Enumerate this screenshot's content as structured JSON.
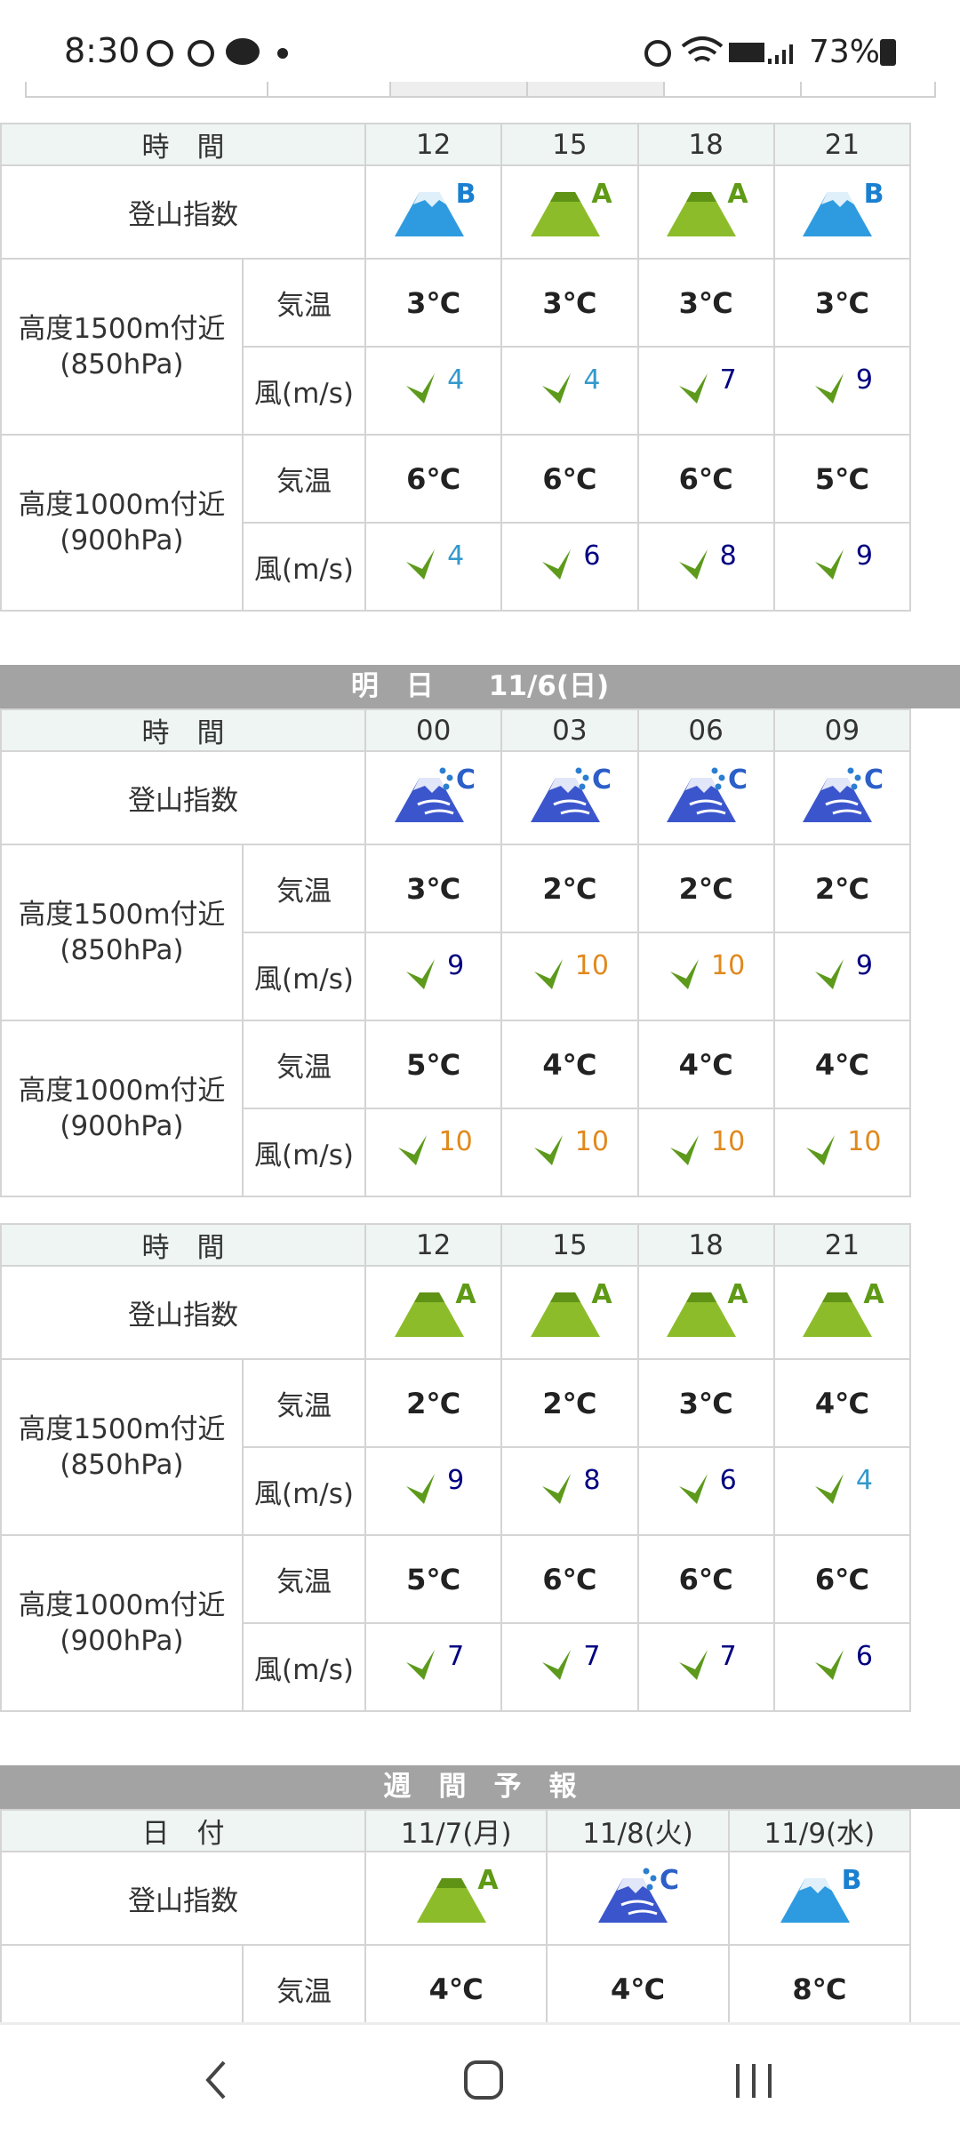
{
  "status_bar": {
    "time": "8:30",
    "battery": "73%"
  },
  "sections": [
    {
      "tables": [
        {
          "time_label": "時　間",
          "times": [
            "12",
            "15",
            "18",
            "21"
          ],
          "index_label": "登山指数",
          "grades": [
            "B",
            "A",
            "A",
            "B"
          ],
          "levels": [
            {
              "altitude": "高度1500m付近",
              "pressure": "(850hPa)",
              "temp_label": "気温",
              "temps": [
                "3℃",
                "3℃",
                "3℃",
                "3℃"
              ],
              "wind_label": "風(m/s)",
              "winds": [
                4,
                4,
                7,
                9
              ]
            },
            {
              "altitude": "高度1000m付近",
              "pressure": "(900hPa)",
              "temp_label": "気温",
              "temps": [
                "6℃",
                "6℃",
                "6℃",
                "5℃"
              ],
              "wind_label": "風(m/s)",
              "winds": [
                4,
                6,
                8,
                9
              ]
            }
          ]
        }
      ]
    },
    {
      "title": "明　日　　11/6(日)",
      "tables": [
        {
          "time_label": "時　間",
          "times": [
            "00",
            "03",
            "06",
            "09"
          ],
          "index_label": "登山指数",
          "grades": [
            "C",
            "C",
            "C",
            "C"
          ],
          "levels": [
            {
              "altitude": "高度1500m付近",
              "pressure": "(850hPa)",
              "temp_label": "気温",
              "temps": [
                "3℃",
                "2℃",
                "2℃",
                "2℃"
              ],
              "wind_label": "風(m/s)",
              "winds": [
                9,
                10,
                10,
                9
              ]
            },
            {
              "altitude": "高度1000m付近",
              "pressure": "(900hPa)",
              "temp_label": "気温",
              "temps": [
                "5℃",
                "4℃",
                "4℃",
                "4℃"
              ],
              "wind_label": "風(m/s)",
              "winds": [
                10,
                10,
                10,
                10
              ]
            }
          ]
        },
        {
          "time_label": "時　間",
          "times": [
            "12",
            "15",
            "18",
            "21"
          ],
          "index_label": "登山指数",
          "grades": [
            "A",
            "A",
            "A",
            "A"
          ],
          "levels": [
            {
              "altitude": "高度1500m付近",
              "pressure": "(850hPa)",
              "temp_label": "気温",
              "temps": [
                "2℃",
                "2℃",
                "3℃",
                "4℃"
              ],
              "wind_label": "風(m/s)",
              "winds": [
                9,
                8,
                6,
                4
              ]
            },
            {
              "altitude": "高度1000m付近",
              "pressure": "(900hPa)",
              "temp_label": "気温",
              "temps": [
                "5℃",
                "6℃",
                "6℃",
                "6℃"
              ],
              "wind_label": "風(m/s)",
              "winds": [
                7,
                7,
                7,
                6
              ]
            }
          ]
        }
      ]
    },
    {
      "title": "週　間　予　報",
      "tables": [
        {
          "time_label": "日　付",
          "times": [
            "11/7(月)",
            "11/8(火)",
            "11/9(水)"
          ],
          "index_label": "登山指数",
          "grades": [
            "A",
            "C",
            "B"
          ],
          "levels": [
            {
              "temp_label": "気温",
              "temps": [
                "4℃",
                "4℃",
                "8℃"
              ]
            }
          ]
        }
      ]
    }
  ]
}
